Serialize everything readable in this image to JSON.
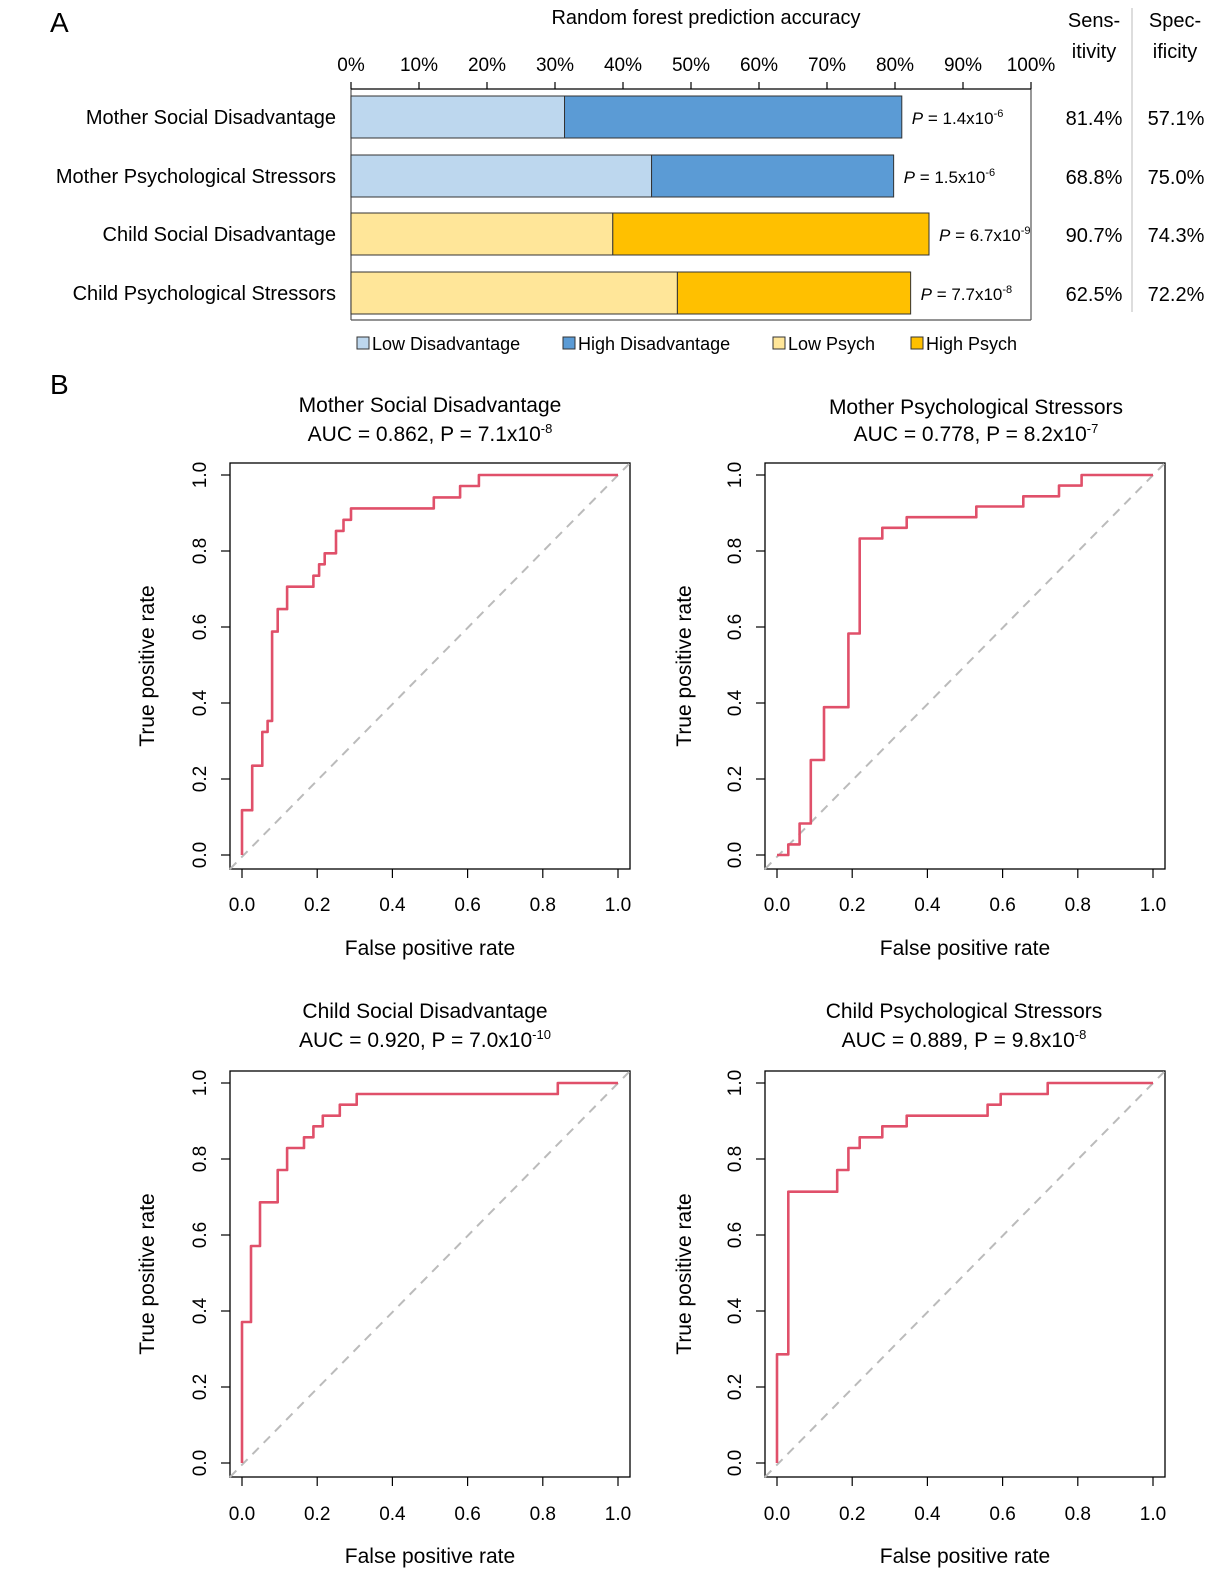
{
  "panel_a": {
    "label": "A",
    "title": "Random forest prediction accuracy",
    "sens_header": [
      "Sens-",
      "itivity"
    ],
    "spec_header": [
      "Spec-",
      "ificity"
    ],
    "legend": [
      "Low Disadvantage",
      "High Disadvantage",
      "Low Psych",
      "High Psych"
    ],
    "colors": {
      "low_dis": "#BDD7EE",
      "high_dis": "#5B9BD5",
      "low_psych": "#FFE699",
      "high_psych": "#FFC000"
    }
  },
  "panel_b": {
    "label": "B",
    "x_label": "False positive rate",
    "y_label": "True positive rate",
    "roc_color": "#E0506A",
    "diag_color": "#BBBBBB"
  },
  "chart_data": [
    {
      "type": "bar",
      "stacked": true,
      "title": "Random forest prediction accuracy",
      "xlim": [
        0,
        100
      ],
      "x_ticks": [
        "0%",
        "10%",
        "20%",
        "30%",
        "40%",
        "50%",
        "60%",
        "70%",
        "80%",
        "90%",
        "100%"
      ],
      "categories": [
        "Mother Social Disadvantage",
        "Mother Psychological Stressors",
        "Child Social Disadvantage",
        "Child Psychological Stressors"
      ],
      "series": [
        {
          "name": "Low",
          "values": [
            31.4,
            44.2,
            38.5,
            48.0
          ]
        },
        {
          "name": "High",
          "values": [
            49.6,
            35.6,
            46.5,
            34.3
          ]
        }
      ],
      "totals": [
        81.0,
        79.8,
        85.0,
        82.3
      ],
      "p_values": [
        {
          "base": "1.4x10",
          "exp": "-6"
        },
        {
          "base": "1.5x10",
          "exp": "-6"
        },
        {
          "base": "6.7x10",
          "exp": "-9"
        },
        {
          "base": "7.7x10",
          "exp": "-8"
        }
      ],
      "sensitivity": [
        "81.4%",
        "68.8%",
        "90.7%",
        "62.5%"
      ],
      "specificity": [
        "57.1%",
        "75.0%",
        "74.3%",
        "72.2%"
      ]
    },
    {
      "type": "line",
      "title": "Mother Social Disadvantage",
      "subtitle": {
        "prefix": "AUC = 0.862, P = 7.1x10",
        "exp": "-8"
      },
      "xlabel": "False positive rate",
      "ylabel": "True positive rate",
      "xlim": [
        0,
        1
      ],
      "ylim": [
        0,
        1
      ],
      "ticks": [
        "0.0",
        "0.2",
        "0.4",
        "0.6",
        "0.8",
        "1.0"
      ],
      "x": [
        0,
        0,
        0.027,
        0.027,
        0.054,
        0.054,
        0.068,
        0.068,
        0.08,
        0.08,
        0.095,
        0.095,
        0.12,
        0.12,
        0.19,
        0.19,
        0.205,
        0.205,
        0.22,
        0.22,
        0.25,
        0.25,
        0.27,
        0.27,
        0.29,
        0.29,
        0.51,
        0.51,
        0.58,
        0.58,
        0.63,
        0.63,
        1.0
      ],
      "y": [
        0,
        0.118,
        0.118,
        0.235,
        0.235,
        0.324,
        0.324,
        0.353,
        0.353,
        0.588,
        0.588,
        0.647,
        0.647,
        0.706,
        0.706,
        0.735,
        0.735,
        0.765,
        0.765,
        0.794,
        0.794,
        0.853,
        0.853,
        0.882,
        0.882,
        0.912,
        0.912,
        0.941,
        0.941,
        0.971,
        0.971,
        1.0,
        1.0
      ]
    },
    {
      "type": "line",
      "title": "Mother Psychological Stressors",
      "subtitle": {
        "prefix": "AUC = 0.778, P = 8.2x10",
        "exp": "-7"
      },
      "xlabel": "False positive rate",
      "ylabel": "True positive rate",
      "xlim": [
        0,
        1
      ],
      "ylim": [
        0,
        1
      ],
      "ticks": [
        "0.0",
        "0.2",
        "0.4",
        "0.6",
        "0.8",
        "1.0"
      ],
      "x": [
        0,
        0.03,
        0.03,
        0.06,
        0.06,
        0.09,
        0.09,
        0.125,
        0.125,
        0.19,
        0.19,
        0.22,
        0.22,
        0.28,
        0.28,
        0.345,
        0.345,
        0.53,
        0.53,
        0.655,
        0.655,
        0.75,
        0.75,
        0.81,
        0.81,
        1.0
      ],
      "y": [
        0,
        0,
        0.028,
        0.028,
        0.083,
        0.083,
        0.25,
        0.25,
        0.389,
        0.389,
        0.583,
        0.583,
        0.833,
        0.833,
        0.861,
        0.861,
        0.889,
        0.889,
        0.917,
        0.917,
        0.944,
        0.944,
        0.972,
        0.972,
        1.0,
        1.0
      ]
    },
    {
      "type": "line",
      "title": "Child Social Disadvantage",
      "subtitle": {
        "prefix": "AUC = 0.920, P = 7.0x10",
        "exp": "-10"
      },
      "xlabel": "False positive rate",
      "ylabel": "True positive rate",
      "xlim": [
        0,
        1
      ],
      "ylim": [
        0,
        1
      ],
      "ticks": [
        "0.0",
        "0.2",
        "0.4",
        "0.6",
        "0.8",
        "1.0"
      ],
      "x": [
        0,
        0,
        0.024,
        0.024,
        0.048,
        0.048,
        0.095,
        0.095,
        0.12,
        0.12,
        0.165,
        0.165,
        0.19,
        0.19,
        0.215,
        0.215,
        0.26,
        0.26,
        0.305,
        0.305,
        0.84,
        0.84,
        1.0
      ],
      "y": [
        0,
        0.371,
        0.371,
        0.571,
        0.571,
        0.686,
        0.686,
        0.771,
        0.771,
        0.829,
        0.829,
        0.857,
        0.857,
        0.886,
        0.886,
        0.914,
        0.914,
        0.943,
        0.943,
        0.971,
        0.971,
        1.0,
        1.0
      ]
    },
    {
      "type": "line",
      "title": "Child Psychological Stressors",
      "subtitle": {
        "prefix": "AUC = 0.889, P = 9.8x10",
        "exp": "-8"
      },
      "xlabel": "False positive rate",
      "ylabel": "True positive rate",
      "xlim": [
        0,
        1
      ],
      "ylim": [
        0,
        1
      ],
      "ticks": [
        "0.0",
        "0.2",
        "0.4",
        "0.6",
        "0.8",
        "1.0"
      ],
      "x": [
        0,
        0,
        0.03,
        0.03,
        0.16,
        0.16,
        0.19,
        0.19,
        0.22,
        0.22,
        0.28,
        0.28,
        0.345,
        0.345,
        0.56,
        0.56,
        0.595,
        0.595,
        0.72,
        0.72,
        1.0
      ],
      "y": [
        0,
        0.286,
        0.286,
        0.714,
        0.714,
        0.771,
        0.771,
        0.829,
        0.829,
        0.857,
        0.857,
        0.886,
        0.886,
        0.914,
        0.914,
        0.943,
        0.943,
        0.971,
        0.971,
        1.0,
        1.0
      ]
    }
  ]
}
